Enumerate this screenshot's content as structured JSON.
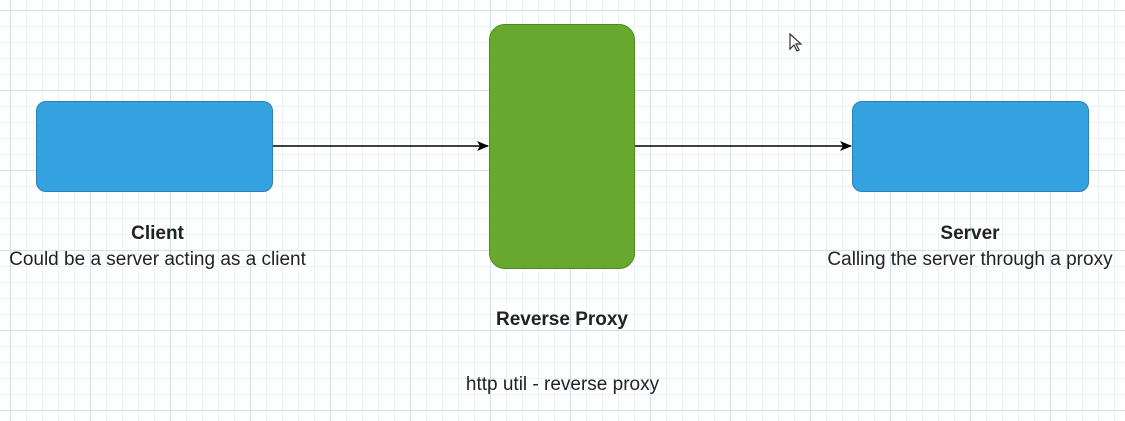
{
  "diagram": {
    "nodes": {
      "client": {
        "title": "Client",
        "description": "Could be a server acting as a client"
      },
      "reverse_proxy": {
        "title": "Reverse Proxy",
        "note": "http util - reverse proxy"
      },
      "server": {
        "title": "Server",
        "description": "Calling the server through a proxy"
      }
    },
    "edges": [
      {
        "from": "client",
        "to": "reverse_proxy"
      },
      {
        "from": "reverse_proxy",
        "to": "server"
      }
    ],
    "colors": {
      "client_fill": "#35a2e0",
      "server_fill": "#35a2e0",
      "proxy_fill": "#67a92e",
      "arrow": "#000000",
      "grid": "#cfe4e6"
    }
  }
}
